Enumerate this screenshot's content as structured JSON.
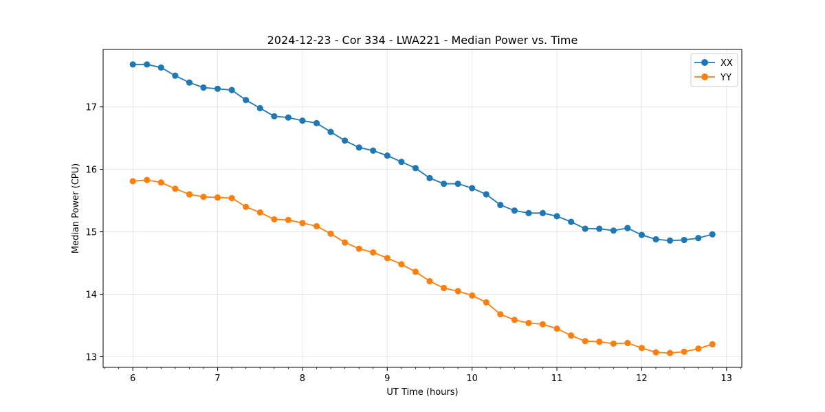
{
  "chart_data": {
    "type": "line",
    "title": "2024-12-23 - Cor 334 - LWA221 - Median Power vs. Time",
    "xlabel": "UT Time (hours)",
    "ylabel": "Median Power (CPU)",
    "xlim": [
      5.65,
      13.18
    ],
    "ylim": [
      12.83,
      17.92
    ],
    "xticks": [
      6,
      7,
      8,
      9,
      10,
      11,
      12,
      13
    ],
    "yticks": [
      13,
      14,
      15,
      16,
      17
    ],
    "grid": true,
    "legend_position": "top-right",
    "x": [
      6.0,
      6.167,
      6.333,
      6.5,
      6.667,
      6.833,
      7.0,
      7.167,
      7.333,
      7.5,
      7.667,
      7.833,
      8.0,
      8.167,
      8.333,
      8.5,
      8.667,
      8.833,
      9.0,
      9.167,
      9.333,
      9.5,
      9.667,
      9.833,
      10.0,
      10.167,
      10.333,
      10.5,
      10.667,
      10.833,
      11.0,
      11.167,
      11.333,
      11.5,
      11.667,
      11.833,
      12.0,
      12.167,
      12.333,
      12.5,
      12.667,
      12.833
    ],
    "series": [
      {
        "name": "XX",
        "color": "#1f77b4",
        "values": [
          17.68,
          17.68,
          17.63,
          17.5,
          17.39,
          17.31,
          17.29,
          17.27,
          17.11,
          16.98,
          16.85,
          16.83,
          16.78,
          16.74,
          16.6,
          16.46,
          16.35,
          16.3,
          16.22,
          16.12,
          16.02,
          15.86,
          15.77,
          15.77,
          15.7,
          15.6,
          15.43,
          15.34,
          15.3,
          15.3,
          15.25,
          15.16,
          15.05,
          15.05,
          15.02,
          15.06,
          14.95,
          14.88,
          14.86,
          14.87,
          14.9,
          14.96
        ]
      },
      {
        "name": "YY",
        "color": "#ff7f0e",
        "values": [
          15.81,
          15.83,
          15.79,
          15.69,
          15.6,
          15.56,
          15.55,
          15.54,
          15.4,
          15.31,
          15.2,
          15.19,
          15.14,
          15.09,
          14.97,
          14.83,
          14.73,
          14.67,
          14.58,
          14.48,
          14.36,
          14.21,
          14.1,
          14.05,
          13.98,
          13.87,
          13.68,
          13.59,
          13.54,
          13.52,
          13.45,
          13.34,
          13.25,
          13.24,
          13.21,
          13.22,
          13.14,
          13.07,
          13.06,
          13.08,
          13.13,
          13.2
        ]
      }
    ]
  }
}
